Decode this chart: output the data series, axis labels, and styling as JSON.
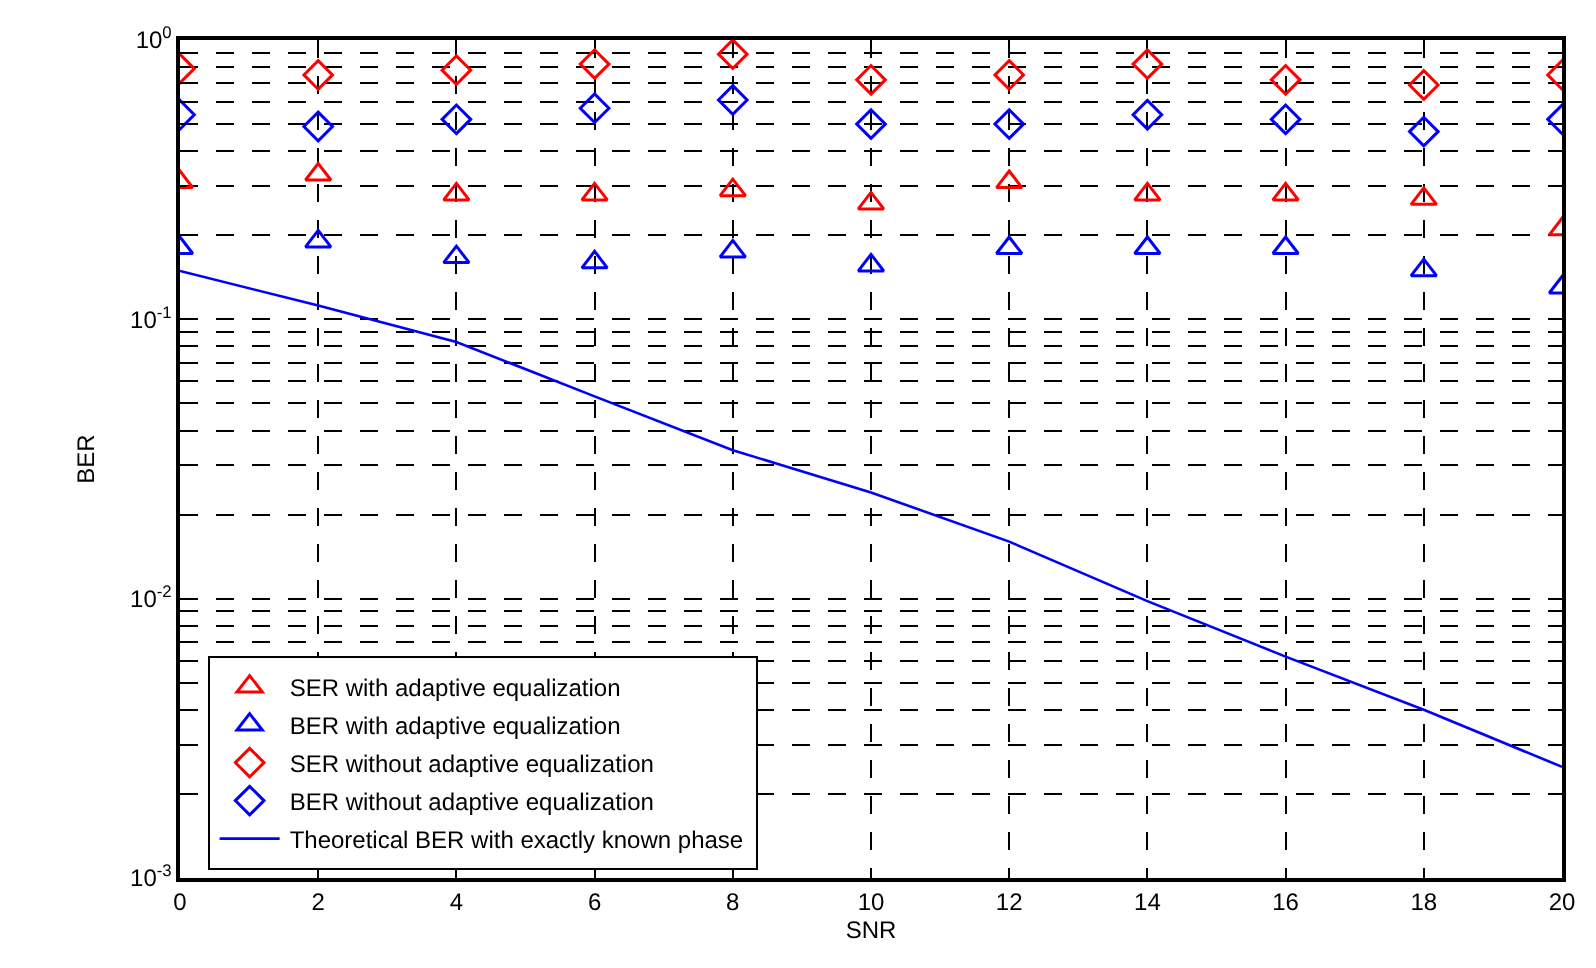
{
  "chart_data": {
    "type": "scatter",
    "xlabel": "SNR",
    "ylabel": "BER",
    "log": "y",
    "x": [
      0,
      2,
      4,
      6,
      8,
      10,
      12,
      14,
      16,
      18,
      20
    ],
    "xlim": [
      0,
      20
    ],
    "xticks": [
      0,
      2,
      4,
      6,
      8,
      10,
      12,
      14,
      16,
      18,
      20
    ],
    "ylim": [
      0.001,
      1
    ],
    "yticks": [
      {
        "value": 0.001,
        "label": "10$^{-3}$"
      },
      {
        "value": 0.01,
        "label": "10$^{-2}$"
      },
      {
        "value": 0.1,
        "label": "10$^{-1}$"
      },
      {
        "value": 1,
        "label": "10$^{0}$"
      }
    ],
    "grid": true,
    "legend": "bottom left",
    "line_style": "dashed",
    "series": [
      {
        "name": "SER with adaptive equalization",
        "color": "#ff0000",
        "marker": "triangle",
        "values": [
          0.31,
          0.33,
          0.28,
          0.28,
          0.29,
          0.26,
          0.31,
          0.28,
          0.28,
          0.27,
          0.21
        ]
      },
      {
        "name": "BER with adaptive equalization",
        "color": "#0000ff",
        "marker": "triangle",
        "values": [
          0.18,
          0.19,
          0.167,
          0.16,
          0.175,
          0.156,
          0.18,
          0.18,
          0.18,
          0.15,
          0.13
        ]
      },
      {
        "name": "SER without adaptive equalization",
        "color": "#ff0000",
        "marker": "diamond",
        "values": [
          0.79,
          0.75,
          0.78,
          0.82,
          0.89,
          0.72,
          0.75,
          0.82,
          0.72,
          0.69,
          0.75
        ]
      },
      {
        "name": "BER without adaptive equalization",
        "color": "#0000ff",
        "marker": "diamond",
        "values": [
          0.54,
          0.49,
          0.52,
          0.57,
          0.61,
          0.5,
          0.5,
          0.54,
          0.52,
          0.47,
          0.52
        ]
      },
      {
        "name": "Theoretical BER with exactly known phase",
        "type": "line",
        "color": "#0000ff",
        "marker": "none",
        "line_style": "solid",
        "values": [
          0.149,
          0.112,
          0.083,
          0.053,
          0.034,
          0.024,
          0.016,
          0.0098,
          0.0062,
          0.004,
          0.0025
        ]
      }
    ]
  }
}
